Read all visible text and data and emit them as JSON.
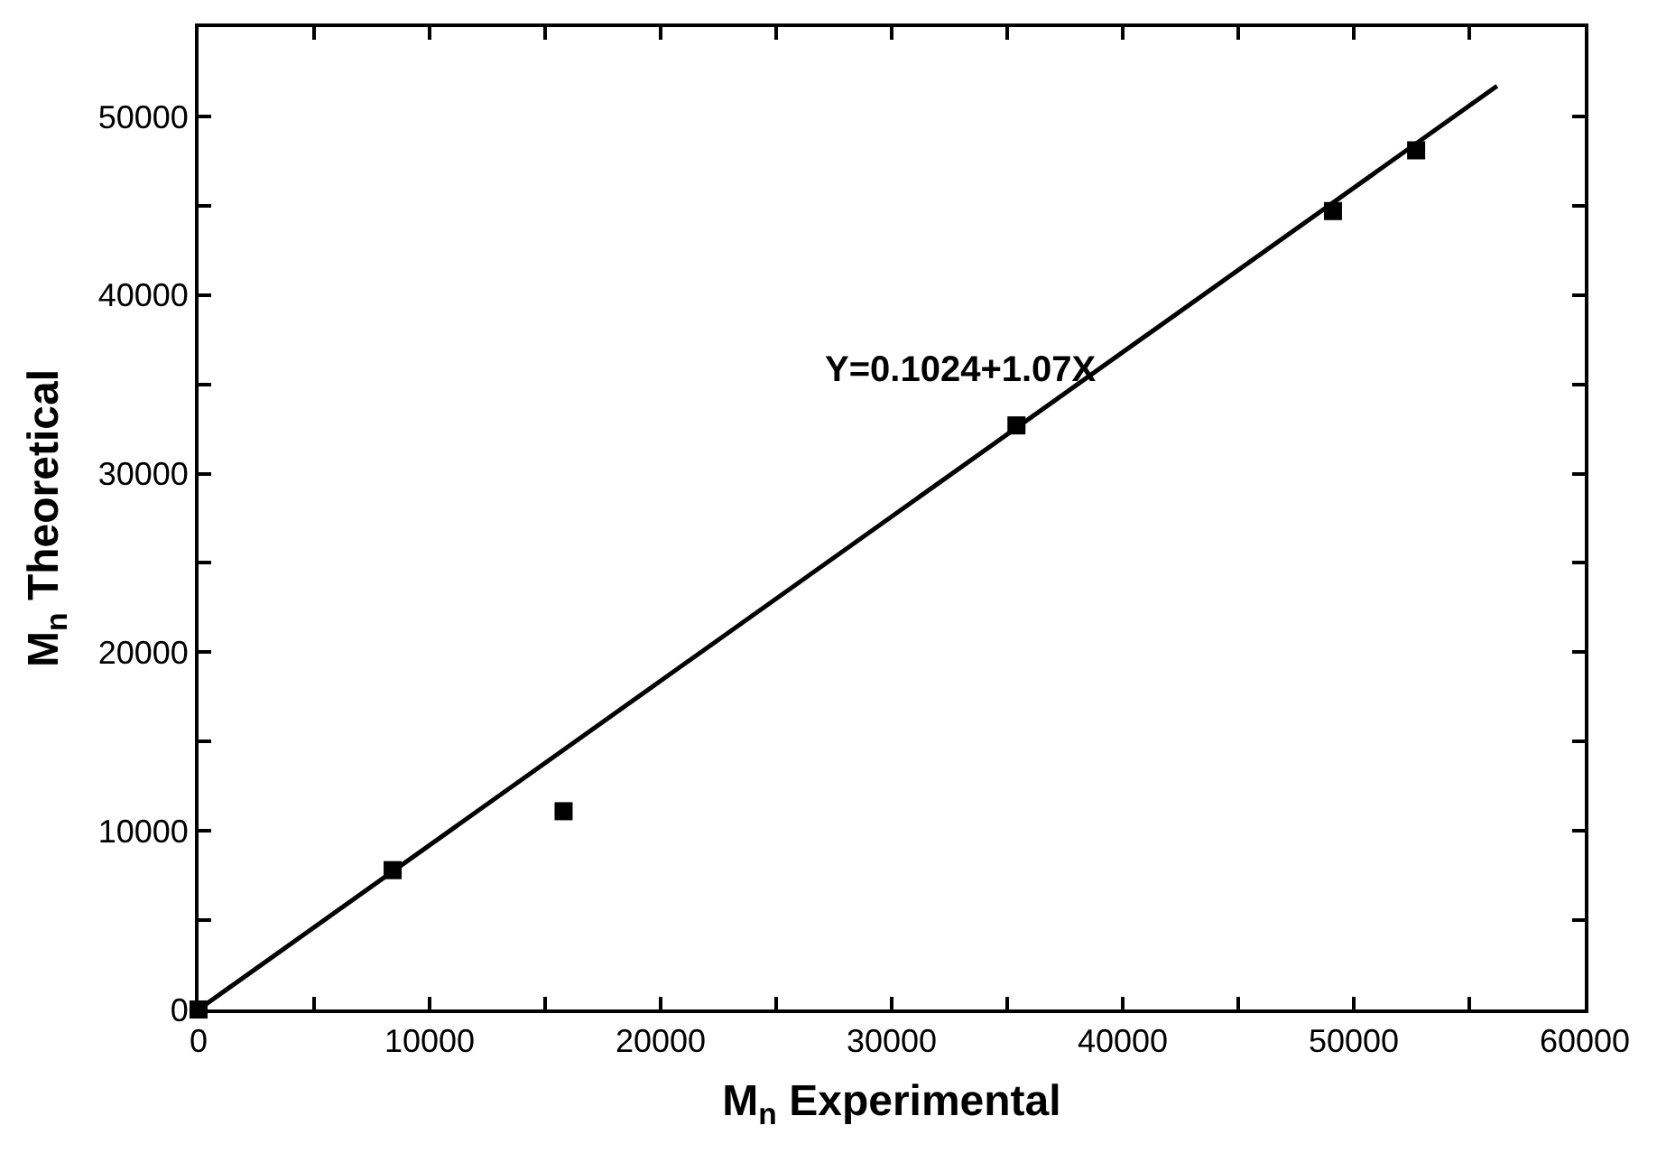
{
  "chart_data": {
    "type": "scatter",
    "xlabel": "M$_{n}$ Experimental",
    "ylabel": "M$_{n}$ Theoretical",
    "series": [
      {
        "color": "#000000",
        "marker": "square",
        "x": [
          0,
          8400,
          15800,
          35400,
          49100,
          52700
        ],
        "values": [
          0,
          7800,
          11100,
          32700,
          44700,
          48100
        ]
      },
      {
        "type": "line",
        "color": "#000000",
        "line_style": "solid",
        "x": [
          0,
          56200
        ],
        "values": [
          0,
          51700
        ]
      }
    ],
    "annotations": [
      "Y=0.1024+1.07X"
    ],
    "xlim": [
      0,
      60000
    ],
    "ylim": [
      0,
      55000
    ],
    "xticks": [
      0,
      {
        "value": 5000,
        "label": null
      },
      10000,
      {
        "value": 15000,
        "label": null
      },
      20000,
      {
        "value": 25000,
        "label": null
      },
      30000,
      {
        "value": 35000,
        "label": null
      },
      40000,
      {
        "value": 45000,
        "label": null
      },
      50000,
      {
        "value": 55000,
        "label": null
      },
      60000
    ],
    "yticks": [
      0,
      {
        "value": 5000,
        "label": null
      },
      10000,
      {
        "value": 15000,
        "label": null
      },
      20000,
      {
        "value": 25000,
        "label": null
      },
      30000,
      {
        "value": 35000,
        "label": null
      },
      40000,
      {
        "value": 45000,
        "label": null
      },
      50000
    ],
    "grid": false
  }
}
